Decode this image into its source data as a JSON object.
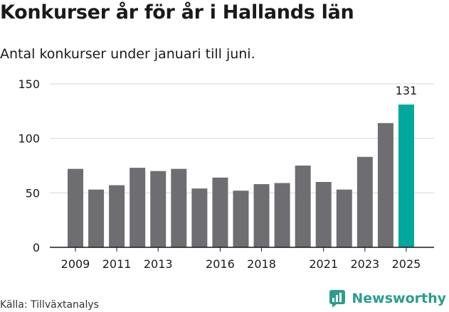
{
  "title": "Konkurser år för år i Hallands län",
  "subtitle": "Antal konkurser under januari till juni.",
  "source": "Källa: Tillväxtanalys",
  "brand": "Newsworthy",
  "colors": {
    "bar": "#6e6d72",
    "highlight": "#00a79d",
    "grid": "#d9d9d9",
    "axis": "#1a1a1a",
    "brand": "#2a9d8f"
  },
  "chart_data": {
    "type": "bar",
    "categories": [
      "2009",
      "2010",
      "2011",
      "2012",
      "2013",
      "2014",
      "2015",
      "2016",
      "2017",
      "2018",
      "2019",
      "2020",
      "2021",
      "2022",
      "2023",
      "2024",
      "2025"
    ],
    "values": [
      72,
      53,
      57,
      73,
      70,
      72,
      54,
      64,
      52,
      58,
      59,
      75,
      60,
      53,
      83,
      114,
      131
    ],
    "tick_labels": [
      "2009",
      "2011",
      "2013",
      "2016",
      "2018",
      "2021",
      "2023",
      "2025"
    ],
    "highlight_index": 16,
    "data_labels": [
      {
        "index": 16,
        "text": "131"
      }
    ],
    "yticks": [
      0,
      50,
      100,
      150
    ],
    "ylim": [
      0,
      150
    ],
    "grid": true,
    "legend": "none"
  }
}
